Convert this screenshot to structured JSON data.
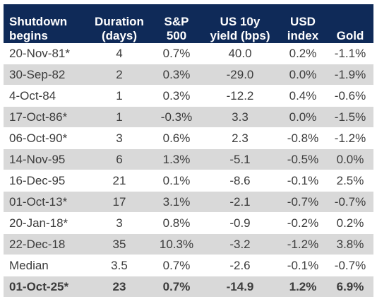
{
  "chart_data": {
    "type": "table",
    "columns": [
      {
        "key": "date",
        "lines": [
          "Shutdown",
          "begins"
        ]
      },
      {
        "key": "duration",
        "lines": [
          "Duration",
          "(days)"
        ]
      },
      {
        "key": "sp500",
        "lines": [
          "S&P",
          "500"
        ]
      },
      {
        "key": "us10y",
        "lines": [
          "US 10y",
          "yield (bps)"
        ]
      },
      {
        "key": "usd",
        "lines": [
          "USD",
          "index"
        ]
      },
      {
        "key": "gold",
        "lines": [
          "",
          "Gold"
        ]
      }
    ],
    "rows": [
      [
        "20-Nov-81*",
        "4",
        "0.7%",
        "40.0",
        "0.2%",
        "-1.1%"
      ],
      [
        "30-Sep-82",
        "2",
        "0.3%",
        "-29.0",
        "0.0%",
        "-1.9%"
      ],
      [
        "4-Oct-84",
        "1",
        "0.3%",
        "-12.2",
        "0.4%",
        "-0.6%"
      ],
      [
        "17-Oct-86*",
        "1",
        "-0.3%",
        "3.3",
        "0.0%",
        "-1.5%"
      ],
      [
        "06-Oct-90*",
        "3",
        "0.6%",
        "2.3",
        "-0.8%",
        "-1.2%"
      ],
      [
        "14-Nov-95",
        "6",
        "1.3%",
        "-5.1",
        "-0.5%",
        "0.0%"
      ],
      [
        "16-Dec-95",
        "21",
        "0.1%",
        "-8.6",
        "-0.1%",
        "2.5%"
      ],
      [
        "01-Oct-13*",
        "17",
        "3.1%",
        "-2.1",
        "-0.7%",
        "-0.7%"
      ],
      [
        "20-Jan-18*",
        "3",
        "0.8%",
        "-0.9",
        "-0.2%",
        "0.2%"
      ],
      [
        "22-Dec-18",
        "35",
        "10.3%",
        "-3.2",
        "-1.2%",
        "3.8%"
      ]
    ],
    "median": [
      "Median",
      "3.5",
      "0.7%",
      "-2.6",
      "-0.1%",
      "-0.7%"
    ],
    "current": [
      "01-Oct-25*",
      "23",
      "0.7%",
      "-14.9",
      "1.2%",
      "6.9%"
    ],
    "colors": {
      "header_bg": "#0f2a58",
      "header_text": "#ffffff",
      "stripe": "#d9d9d9",
      "text": "#3c3c3c"
    }
  }
}
